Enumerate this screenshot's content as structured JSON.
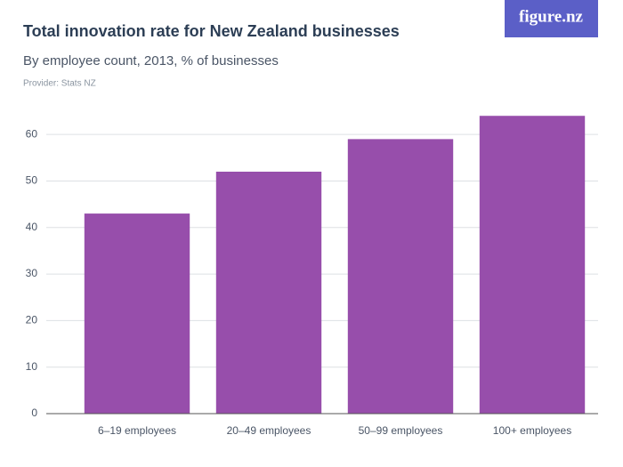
{
  "chart_data": {
    "type": "bar",
    "title": "Total innovation rate for New Zealand businesses",
    "subtitle": "By employee count, 2013, % of businesses",
    "provider": "Provider: Stats NZ",
    "logo": "figure.nz",
    "categories": [
      "6–19 employees",
      "20–49 employees",
      "50–99 employees",
      "100+ employees"
    ],
    "values": [
      43,
      52,
      59,
      64
    ],
    "color": "#974eab",
    "ylim": [
      0,
      65
    ],
    "yticks": [
      0,
      10,
      20,
      30,
      40,
      50,
      60
    ],
    "grid": true
  }
}
